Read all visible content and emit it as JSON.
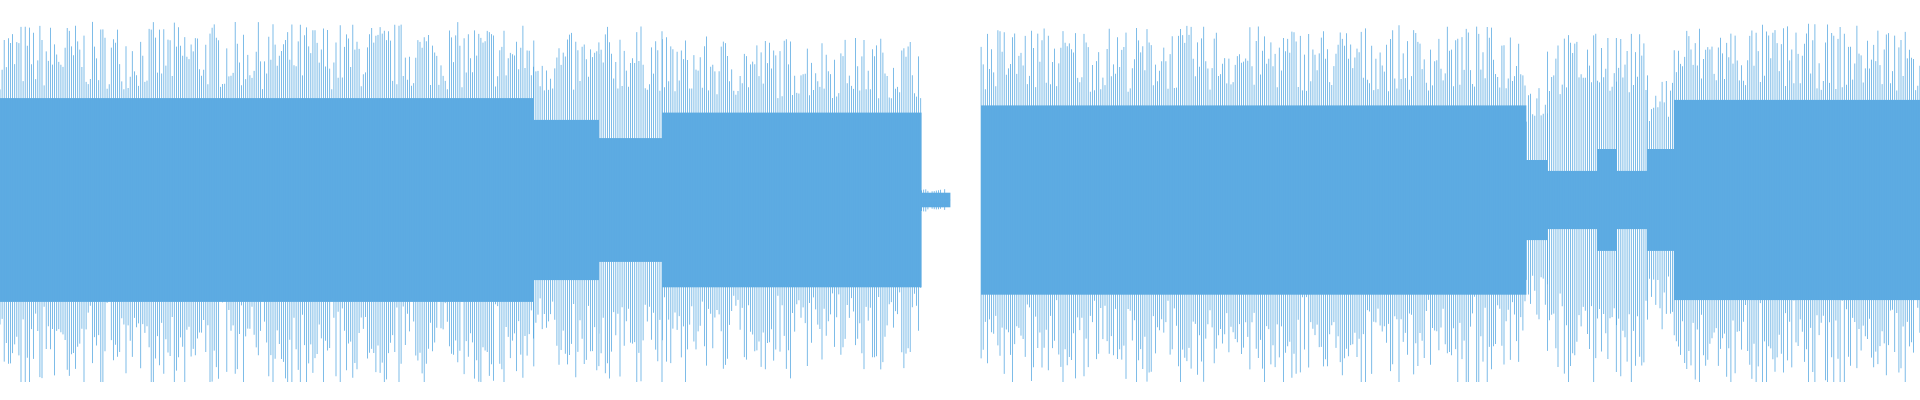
{
  "waveform": {
    "color": "#5DABE2",
    "background": "#FFFFFF",
    "segments": [
      {
        "start": 0.0,
        "end": 0.278,
        "core": 0.56,
        "peak": 0.98
      },
      {
        "start": 0.278,
        "end": 0.312,
        "core": 0.44,
        "peak": 0.92
      },
      {
        "start": 0.312,
        "end": 0.345,
        "core": 0.34,
        "peak": 0.96
      },
      {
        "start": 0.345,
        "end": 0.48,
        "core": 0.48,
        "peak": 0.9
      },
      {
        "start": 0.48,
        "end": 0.495,
        "core": 0.04,
        "peak": 0.06
      },
      {
        "start": 0.511,
        "end": 0.795,
        "core": 0.52,
        "peak": 0.96
      },
      {
        "start": 0.795,
        "end": 0.806,
        "core": 0.22,
        "peak": 0.68
      },
      {
        "start": 0.806,
        "end": 0.832,
        "core": 0.16,
        "peak": 0.92
      },
      {
        "start": 0.832,
        "end": 0.842,
        "core": 0.28,
        "peak": 0.96
      },
      {
        "start": 0.842,
        "end": 0.858,
        "core": 0.16,
        "peak": 0.92
      },
      {
        "start": 0.858,
        "end": 0.872,
        "core": 0.28,
        "peak": 0.7
      },
      {
        "start": 0.872,
        "end": 1.0,
        "core": 0.55,
        "peak": 0.97
      }
    ]
  }
}
